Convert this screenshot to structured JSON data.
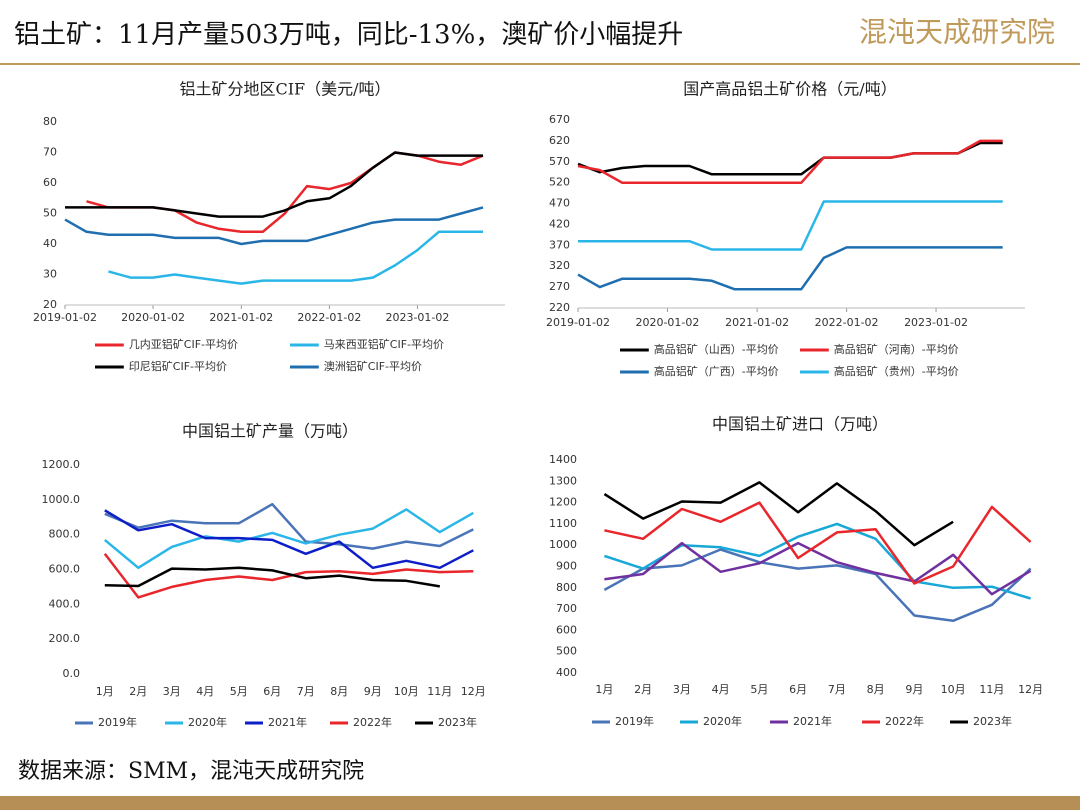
{
  "header": {
    "title": "铝土矿：11月产量503万吨，同比-13%，澳矿价小幅提升",
    "logo": "混沌天成研究院"
  },
  "footer": {
    "source": "数据来源：SMM，混沌天成研究院"
  },
  "chart_data": [
    {
      "type": "line",
      "title": "铝土矿分地区CIF（美元/吨）",
      "x": [
        "2019-01-02",
        "2019-04-01",
        "2019-07-01",
        "2019-10-01",
        "2020-01-02",
        "2020-04-01",
        "2020-07-01",
        "2020-10-01",
        "2021-01-02",
        "2021-04-01",
        "2021-07-01",
        "2021-10-01",
        "2022-01-02",
        "2022-04-01",
        "2022-07-01",
        "2022-10-01",
        "2023-01-02",
        "2023-04-01",
        "2023-07-01",
        "2023-10-01"
      ],
      "xlim": [
        "2019-01-02",
        "2023-12-31"
      ],
      "xticks": [
        "2019-01-02",
        "2020-01-02",
        "2021-01-02",
        "2022-01-02",
        "2023-01-02"
      ],
      "ylim": [
        20,
        80
      ],
      "yticks": [
        20,
        30,
        40,
        50,
        60,
        70,
        80
      ],
      "grid": false,
      "series": [
        {
          "name": "几内亚铝矿CIF-平均价",
          "color": "#e8262b",
          "values": [
            null,
            54,
            52,
            52,
            52,
            51,
            47,
            45,
            44,
            44,
            50,
            59,
            58,
            60,
            65,
            70,
            69,
            67,
            66,
            69
          ]
        },
        {
          "name": "马来西亚铝矿CIF-平均价",
          "color": "#2bb6e8",
          "values": [
            null,
            null,
            31,
            29,
            29,
            30,
            29,
            28,
            27,
            28,
            28,
            28,
            28,
            28,
            29,
            33,
            38,
            44,
            44,
            44
          ]
        },
        {
          "name": "印尼铝矿CIF-平均价",
          "color": "#000000",
          "values": [
            52,
            52,
            52,
            52,
            52,
            51,
            50,
            49,
            49,
            49,
            51,
            54,
            55,
            59,
            65,
            70,
            69,
            69,
            69,
            69
          ]
        },
        {
          "name": "澳洲铝矿CIF-平均价",
          "color": "#1f6fb0",
          "values": [
            48,
            44,
            43,
            43,
            43,
            42,
            42,
            42,
            40,
            41,
            41,
            41,
            43,
            45,
            47,
            48,
            48,
            48,
            50,
            52
          ]
        }
      ]
    },
    {
      "type": "line",
      "title": "国产高品铝土矿价格（元/吨）",
      "x": [
        "2019-01-02",
        "2019-04-01",
        "2019-07-01",
        "2019-10-01",
        "2020-01-02",
        "2020-04-01",
        "2020-07-01",
        "2020-10-01",
        "2021-01-02",
        "2021-04-01",
        "2021-07-01",
        "2021-10-01",
        "2022-01-02",
        "2022-04-01",
        "2022-07-01",
        "2022-10-01",
        "2023-01-02",
        "2023-04-01",
        "2023-07-01",
        "2023-10-01"
      ],
      "xlim": [
        "2019-01-02",
        "2023-12-31"
      ],
      "xticks": [
        "2019-01-02",
        "2020-01-02",
        "2021-01-02",
        "2022-01-02",
        "2023-01-02"
      ],
      "ylim": [
        220,
        670
      ],
      "yticks": [
        220,
        270,
        320,
        370,
        420,
        470,
        520,
        570,
        620,
        670
      ],
      "grid": false,
      "series": [
        {
          "name": "高品铝矿（山西）-平均价",
          "color": "#000000",
          "values": [
            565,
            545,
            555,
            560,
            560,
            560,
            540,
            540,
            540,
            540,
            540,
            580,
            580,
            580,
            580,
            590,
            590,
            590,
            615,
            615
          ]
        },
        {
          "name": "高品铝矿（河南）-平均价",
          "color": "#e8262b",
          "values": [
            560,
            550,
            520,
            520,
            520,
            520,
            520,
            520,
            520,
            520,
            520,
            580,
            580,
            580,
            580,
            590,
            590,
            590,
            620,
            620
          ]
        },
        {
          "name": "高品铝矿（广西）-平均价",
          "color": "#1f6fb0",
          "values": [
            300,
            270,
            290,
            290,
            290,
            290,
            285,
            265,
            265,
            265,
            265,
            340,
            365,
            365,
            365,
            365,
            365,
            365,
            365,
            365
          ]
        },
        {
          "name": "高品铝矿（贵州）-平均价",
          "color": "#2bb6e8",
          "values": [
            380,
            380,
            380,
            380,
            380,
            380,
            360,
            360,
            360,
            360,
            360,
            475,
            475,
            475,
            475,
            475,
            475,
            475,
            475,
            475
          ]
        }
      ]
    },
    {
      "type": "line",
      "title": "中国铝土矿产量（万吨）",
      "categories": [
        "1月",
        "2月",
        "3月",
        "4月",
        "5月",
        "6月",
        "7月",
        "8月",
        "9月",
        "10月",
        "11月",
        "12月"
      ],
      "ylim": [
        0,
        1200
      ],
      "yticks": [
        {
          "value": 0,
          "label": "0.0"
        },
        {
          "value": 200,
          "label": "200.0"
        },
        {
          "value": 400,
          "label": "400.0"
        },
        {
          "value": 600,
          "label": "600.0"
        },
        {
          "value": 800,
          "label": "800.0"
        },
        {
          "value": 1000,
          "label": "1000.0"
        },
        {
          "value": 1200,
          "label": "1200.0"
        }
      ],
      "grid": false,
      "series": [
        {
          "name": "2019年",
          "color": "#4a74b8",
          "values": [
            920,
            840,
            880,
            865,
            865,
            975,
            760,
            745,
            720,
            760,
            735,
            830
          ]
        },
        {
          "name": "2020年",
          "color": "#2bb6e8",
          "values": [
            770,
            610,
            730,
            790,
            760,
            810,
            750,
            800,
            835,
            945,
            815,
            925
          ]
        },
        {
          "name": "2021年",
          "color": "#0d1ec8",
          "values": [
            940,
            825,
            860,
            780,
            780,
            770,
            690,
            760,
            610,
            650,
            610,
            710
          ]
        },
        {
          "name": "2022年",
          "color": "#e8262b",
          "values": [
            690,
            440,
            500,
            540,
            560,
            540,
            585,
            590,
            575,
            600,
            585,
            590
          ]
        },
        {
          "name": "2023年",
          "color": "#000000",
          "values": [
            510,
            505,
            605,
            600,
            610,
            595,
            550,
            565,
            540,
            535,
            503,
            null
          ]
        }
      ]
    },
    {
      "type": "line",
      "title": "中国铝土矿进口（万吨）",
      "categories": [
        "1月",
        "2月",
        "3月",
        "4月",
        "5月",
        "6月",
        "7月",
        "8月",
        "9月",
        "10月",
        "11月",
        "12月"
      ],
      "ylim": [
        400,
        1400
      ],
      "yticks": [
        400,
        500,
        600,
        700,
        800,
        900,
        1000,
        1100,
        1200,
        1300,
        1400
      ],
      "grid": false,
      "series": [
        {
          "name": "2019年",
          "color": "#4a74b8",
          "values": [
            790,
            890,
            905,
            980,
            920,
            890,
            905,
            865,
            670,
            645,
            720,
            890
          ]
        },
        {
          "name": "2020年",
          "color": "#17a8d8",
          "values": [
            950,
            890,
            1000,
            990,
            950,
            1040,
            1100,
            1030,
            830,
            800,
            805,
            750
          ]
        },
        {
          "name": "2021年",
          "color": "#7030a0",
          "values": [
            840,
            865,
            1010,
            875,
            915,
            1010,
            920,
            870,
            830,
            955,
            770,
            880
          ]
        },
        {
          "name": "2022年",
          "color": "#e8262b",
          "values": [
            1070,
            1030,
            1170,
            1110,
            1200,
            940,
            1060,
            1075,
            820,
            900,
            1180,
            1015
          ]
        },
        {
          "name": "2023年",
          "color": "#000000",
          "values": [
            1240,
            1125,
            1205,
            1200,
            1295,
            1155,
            1290,
            1160,
            1000,
            1110,
            null,
            null
          ]
        }
      ]
    }
  ]
}
